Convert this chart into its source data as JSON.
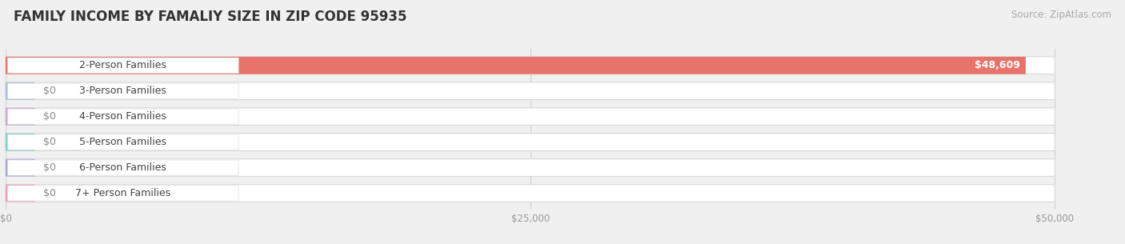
{
  "title": "FAMILY INCOME BY FAMALIY SIZE IN ZIP CODE 95935",
  "source": "Source: ZipAtlas.com",
  "categories": [
    "2-Person Families",
    "3-Person Families",
    "4-Person Families",
    "5-Person Families",
    "6-Person Families",
    "7+ Person Families"
  ],
  "values": [
    48609,
    0,
    0,
    0,
    0,
    0
  ],
  "bar_colors": [
    "#E8736A",
    "#A8C0D8",
    "#C5A8D0",
    "#7DCEC4",
    "#A8A8D8",
    "#F0A0B8"
  ],
  "value_labels": [
    "$48,609",
    "$0",
    "$0",
    "$0",
    "$0",
    "$0"
  ],
  "xlim_max": 52000,
  "bar_max": 50000,
  "xticks": [
    0,
    25000,
    50000
  ],
  "xticklabels": [
    "$0",
    "$25,000",
    "$50,000"
  ],
  "bg_color": "#f0f0f0",
  "bar_bg_color": "#ffffff",
  "title_fontsize": 12,
  "source_fontsize": 8.5,
  "label_fontsize": 9,
  "value_fontsize": 9
}
